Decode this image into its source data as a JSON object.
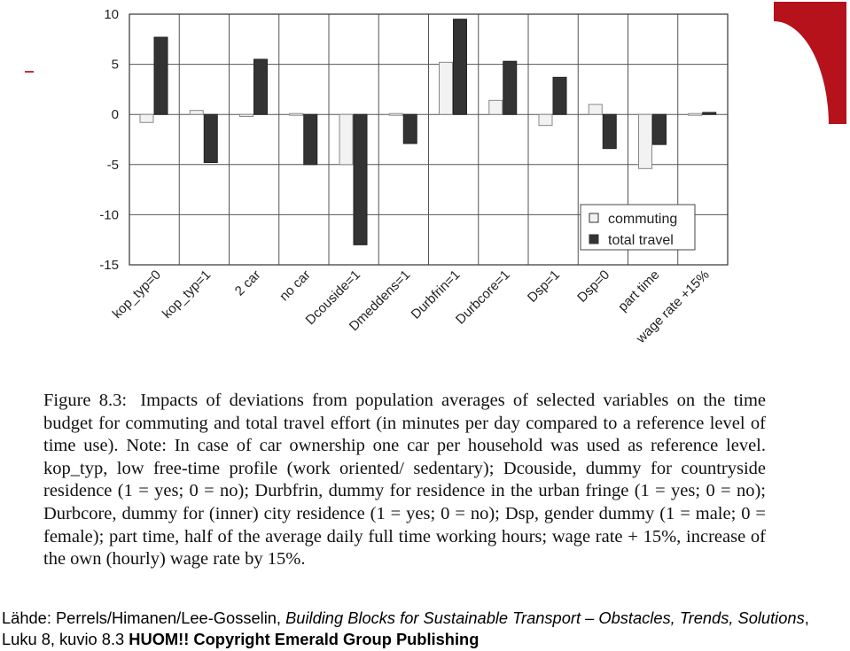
{
  "chart_data": {
    "type": "bar",
    "categories": [
      "kop_typ=0",
      "kop_typ=1",
      "2 car",
      "no car",
      "Dcouside=1",
      "Dmeddens=1",
      "Durbfrin=1",
      "Durbcore=1",
      "Dsp=1",
      "Dsp=0",
      "part time",
      "wage rate +15%"
    ],
    "series": [
      {
        "name": "commuting",
        "color": "#f2f2f2",
        "values": [
          -0.8,
          0.4,
          -0.2,
          0.1,
          -5.0,
          0.0,
          5.2,
          1.4,
          -1.1,
          1.0,
          -5.4,
          0.1
        ]
      },
      {
        "name": "total travel",
        "color": "#333333",
        "values": [
          7.7,
          -4.8,
          5.5,
          -5.0,
          -13.0,
          -2.9,
          9.5,
          5.3,
          3.7,
          -3.4,
          -3.0,
          0.2
        ]
      }
    ],
    "yticks": [
      10,
      5,
      0,
      -5,
      -10,
      -15
    ],
    "ylim": [
      -15,
      10
    ],
    "legend_position": "bottom-right"
  },
  "caption": {
    "label": "Figure 8.3:",
    "text": "Impacts of deviations from population averages of selected variables on the time budget for commuting and total travel effort (in minutes per day compared to a reference level of time use). Note: In case of car ownership one car per household was used as reference level. kop_typ, low free-time profile (work oriented/ sedentary); Dcouside, dummy for countryside residence (1 = yes; 0 = no); Durbfrin, dummy for residence in the urban fringe (1 = yes; 0 = no); Durbcore, dummy for (inner) city residence (1 = yes; 0 = no); Dsp, gender dummy (1 = male; 0 = female); part time, half of the average daily full time working hours; wage rate + 15%, increase of the own (hourly) wage rate by 15%."
  },
  "source": {
    "prefix": "Lähde:  Perrels/Himanen/Lee-Gosselin, ",
    "title": "Building Blocks for Sustainable Transport – Obstacles, Trends, Solutions",
    "suffix": ", Luku 8, kuvio 8.3 ",
    "warning": "HUOM!! Copyright Emerald Group Publishing"
  }
}
